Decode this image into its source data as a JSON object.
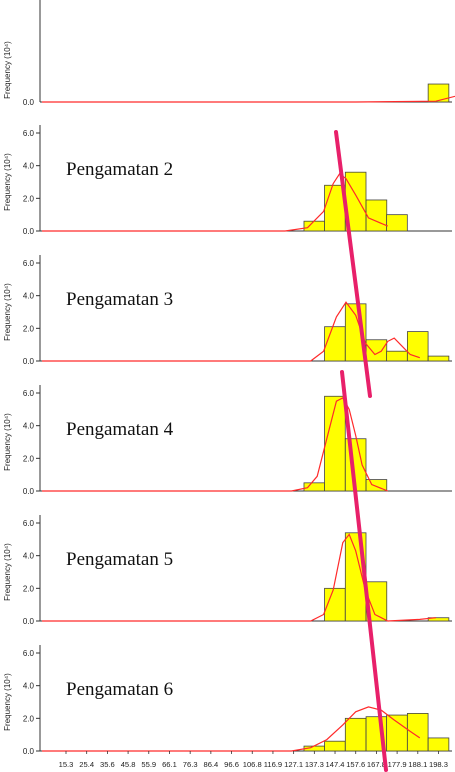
{
  "chart_data": [
    {
      "type": "bar",
      "title": "",
      "ylabel": "Frequency (10^4)",
      "ylim": [
        0,
        7
      ],
      "yticks": [],
      "bins": [
        198.3
      ],
      "values": [
        1.1
      ],
      "curve": [
        [
          1.0,
          0.0
        ],
        [
          1.25,
          0.05
        ],
        [
          1.36,
          0.6
        ]
      ],
      "note": "top panel partly cropped"
    },
    {
      "type": "bar",
      "title": "Pengamatan 2",
      "ylabel": "Frequency (10^4)",
      "ylim": [
        0,
        7
      ],
      "yticks": [
        "0.0",
        "2.0",
        "4.0",
        "6.0"
      ],
      "bins": [
        137.3,
        147.4,
        157.6,
        167.8,
        177.9
      ],
      "values": [
        0.6,
        2.8,
        3.6,
        1.9,
        1.0
      ],
      "curve": [
        [
          0.78,
          0.0
        ],
        [
          0.85,
          0.2
        ],
        [
          0.9,
          1.2
        ],
        [
          0.93,
          2.9
        ],
        [
          0.95,
          3.5
        ],
        [
          0.97,
          3.2
        ],
        [
          1.0,
          2.2
        ],
        [
          1.04,
          0.8
        ],
        [
          1.1,
          0.3
        ]
      ]
    },
    {
      "type": "bar",
      "title": "Pengamatan 3",
      "ylabel": "Frequency (10^4)",
      "ylim": [
        0,
        7
      ],
      "yticks": [
        "0.0",
        "2.0",
        "4.0",
        "6.0"
      ],
      "bins": [
        147.4,
        157.6,
        167.8,
        177.9,
        188.1,
        198.3
      ],
      "values": [
        2.1,
        3.5,
        1.3,
        0.6,
        1.8,
        0.3
      ],
      "curve": [
        [
          0.86,
          0.0
        ],
        [
          0.9,
          0.6
        ],
        [
          0.94,
          2.7
        ],
        [
          0.97,
          3.6
        ],
        [
          1.0,
          2.8
        ],
        [
          1.03,
          1.1
        ],
        [
          1.06,
          0.4
        ],
        [
          1.08,
          0.6
        ],
        [
          1.1,
          1.2
        ],
        [
          1.12,
          1.4
        ],
        [
          1.14,
          1.0
        ],
        [
          1.17,
          0.4
        ],
        [
          1.2,
          0.2
        ]
      ]
    },
    {
      "type": "bar",
      "title": "Pengamatan 4",
      "ylabel": "Frequency (10^4)",
      "ylim": [
        0,
        7
      ],
      "yticks": [
        "0.0",
        "2.0",
        "4.0",
        "6.0"
      ],
      "bins": [
        137.3,
        147.4,
        157.6,
        167.8
      ],
      "values": [
        0.5,
        5.8,
        3.2,
        0.7
      ],
      "curve": [
        [
          0.8,
          0.0
        ],
        [
          0.85,
          0.2
        ],
        [
          0.88,
          0.9
        ],
        [
          0.91,
          3.2
        ],
        [
          0.94,
          5.5
        ],
        [
          0.96,
          5.7
        ],
        [
          0.98,
          5.0
        ],
        [
          1.0,
          3.4
        ],
        [
          1.02,
          1.6
        ],
        [
          1.05,
          0.4
        ],
        [
          1.1,
          0.0
        ]
      ]
    },
    {
      "type": "bar",
      "title": "Pengamatan 5",
      "ylabel": "Frequency (10^4)",
      "ylim": [
        0,
        7
      ],
      "yticks": [
        "0.0",
        "2.0",
        "4.0",
        "6.0"
      ],
      "bins": [
        147.4,
        157.6,
        167.8,
        198.3
      ],
      "values": [
        2.0,
        5.4,
        2.4,
        0.2
      ],
      "curve": [
        [
          0.86,
          0.0
        ],
        [
          0.9,
          0.4
        ],
        [
          0.93,
          1.9
        ],
        [
          0.96,
          4.8
        ],
        [
          0.98,
          5.3
        ],
        [
          1.0,
          4.3
        ],
        [
          1.03,
          1.9
        ],
        [
          1.06,
          0.4
        ],
        [
          1.1,
          0.0
        ],
        [
          1.2,
          0.1
        ],
        [
          1.25,
          0.2
        ]
      ]
    },
    {
      "type": "bar",
      "title": "Pengamatan 6",
      "ylabel": "Frequency (10^4)",
      "ylim": [
        0,
        7
      ],
      "yticks": [
        "0.0",
        "2.0",
        "4.0",
        "6.0"
      ],
      "xticks": [
        "15.3",
        "25.4",
        "35.6",
        "45.8",
        "55.9",
        "66.1",
        "76.3",
        "86.4",
        "96.6",
        "106.8",
        "116.9",
        "127.1",
        "137.3",
        "147.4",
        "157.6",
        "167.8",
        "177.9",
        "188.1",
        "198.3"
      ],
      "bins": [
        137.3,
        147.4,
        157.6,
        167.8,
        177.9,
        188.1,
        198.3
      ],
      "values": [
        0.3,
        0.6,
        2.0,
        2.1,
        2.2,
        2.3,
        0.8
      ],
      "curve": [
        [
          0.8,
          0.0
        ],
        [
          0.86,
          0.2
        ],
        [
          0.91,
          0.7
        ],
        [
          0.96,
          1.6
        ],
        [
          1.0,
          2.4
        ],
        [
          1.04,
          2.7
        ],
        [
          1.08,
          2.5
        ],
        [
          1.12,
          1.9
        ],
        [
          1.17,
          1.2
        ],
        [
          1.2,
          0.8
        ]
      ]
    }
  ],
  "colors": {
    "bar": "#ffff00",
    "curve": "#ff2a2a",
    "overlay_line": "#e8206a"
  }
}
